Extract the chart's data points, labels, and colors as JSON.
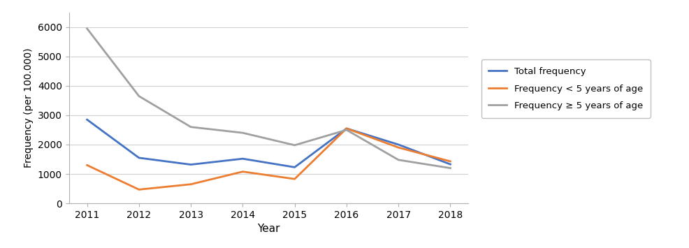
{
  "years": [
    2011,
    2012,
    2013,
    2014,
    2015,
    2016,
    2017,
    2018
  ],
  "total_frequency": [
    2850,
    1550,
    1320,
    1520,
    1230,
    2550,
    2000,
    1330
  ],
  "freq_under5": [
    1300,
    470,
    650,
    1080,
    830,
    2550,
    1900,
    1430
  ],
  "freq_over5": [
    5950,
    3650,
    2600,
    2400,
    1980,
    2500,
    1480,
    1200
  ],
  "total_color": "#4472c4",
  "under5_color": "#ed7d31",
  "over5_color": "#a0a0a0",
  "total_label": "Total frequency",
  "under5_label": "Frequency < 5 years of age",
  "over5_label": "Frequency ≥ 5 years of age",
  "xlabel": "Year",
  "ylabel": "Frequency (per 100.000)",
  "ylim": [
    0,
    6500
  ],
  "yticks": [
    0,
    1000,
    2000,
    3000,
    4000,
    5000,
    6000
  ],
  "background_color": "#ffffff",
  "grid_color": "#d0d0d0"
}
